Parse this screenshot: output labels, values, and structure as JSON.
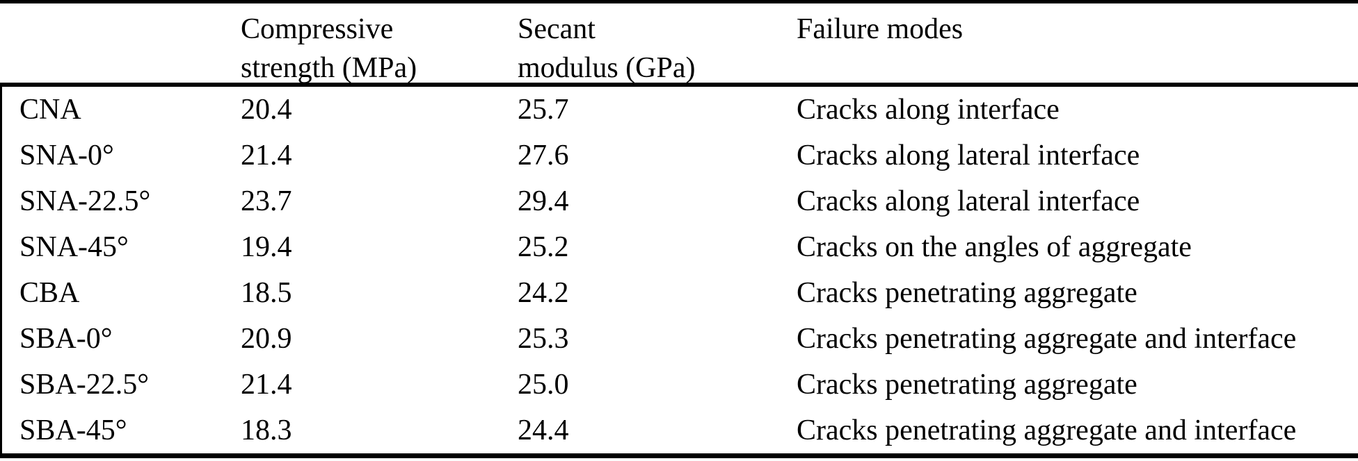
{
  "colors": {
    "background": "#ffffff",
    "text": "#000000",
    "rule": "#000000"
  },
  "table": {
    "header": {
      "specimen_label": "",
      "compressive": {
        "line1": "Compressive",
        "line2": "strength (MPa)"
      },
      "secant": {
        "line1": "Secant",
        "line2": "modulus (GPa)"
      },
      "failure": {
        "line1": "Failure modes"
      }
    },
    "rows": [
      {
        "specimen": "CNA",
        "compressive_strength_mpa": "20.4",
        "secant_modulus_gpa": "25.7",
        "failure_mode": "Cracks along interface"
      },
      {
        "specimen": "SNA-0°",
        "compressive_strength_mpa": "21.4",
        "secant_modulus_gpa": "27.6",
        "failure_mode": "Cracks along lateral interface"
      },
      {
        "specimen": "SNA-22.5°",
        "compressive_strength_mpa": "23.7",
        "secant_modulus_gpa": "29.4",
        "failure_mode": "Cracks along lateral interface"
      },
      {
        "specimen": "SNA-45°",
        "compressive_strength_mpa": "19.4",
        "secant_modulus_gpa": "25.2",
        "failure_mode": "Cracks on the angles of aggregate"
      },
      {
        "specimen": "CBA",
        "compressive_strength_mpa": "18.5",
        "secant_modulus_gpa": "24.2",
        "failure_mode": "Cracks penetrating aggregate"
      },
      {
        "specimen": "SBA-0°",
        "compressive_strength_mpa": "20.9",
        "secant_modulus_gpa": "25.3",
        "failure_mode": "Cracks penetrating aggregate and interface"
      },
      {
        "specimen": "SBA-22.5°",
        "compressive_strength_mpa": "21.4",
        "secant_modulus_gpa": "25.0",
        "failure_mode": "Cracks penetrating aggregate"
      },
      {
        "specimen": "SBA-45°",
        "compressive_strength_mpa": "18.3",
        "secant_modulus_gpa": "24.4",
        "failure_mode": "Cracks penetrating aggregate and interface"
      }
    ]
  }
}
